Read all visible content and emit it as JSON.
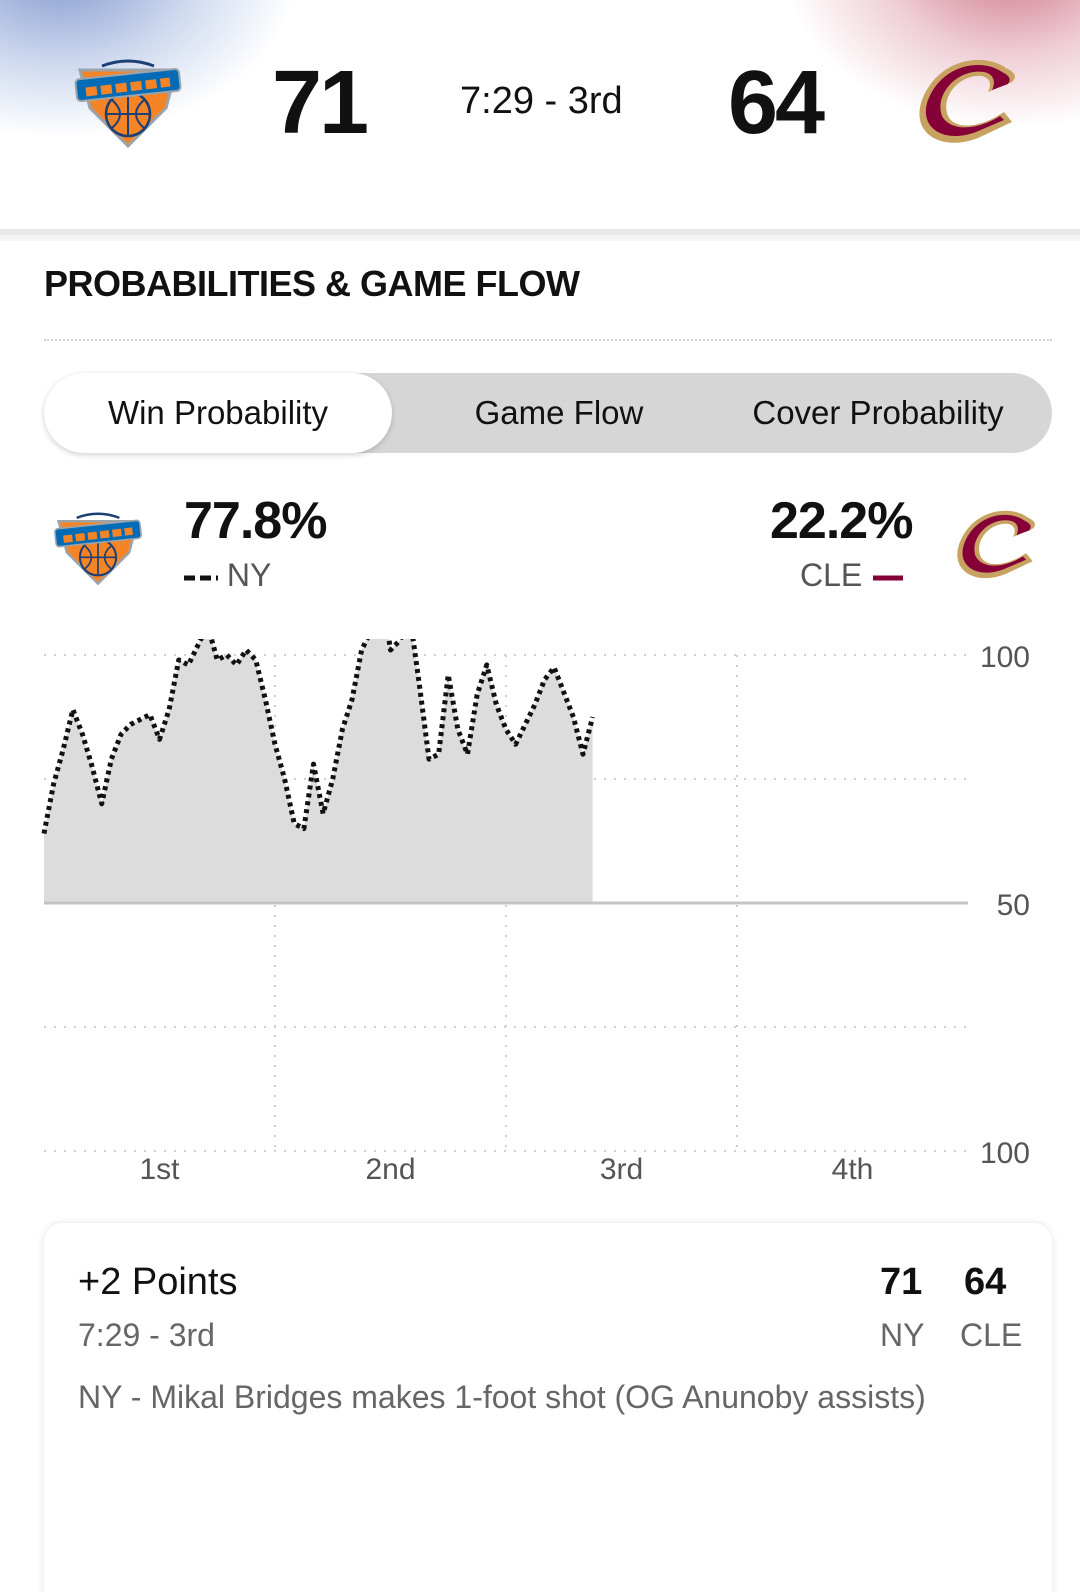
{
  "header": {
    "away_team": "NY",
    "home_team": "CLE",
    "away_score": "71",
    "home_score": "64",
    "game_clock": "7:29 - 3rd"
  },
  "section": {
    "title": "PROBABILITIES & GAME FLOW"
  },
  "tabs": [
    {
      "label": "Win Probability",
      "active": true
    },
    {
      "label": "Game Flow",
      "active": false
    },
    {
      "label": "Cover Probability",
      "active": false
    }
  ],
  "win_probability": {
    "away_pct": "77.8%",
    "home_pct": "22.2%",
    "away_label": "NY",
    "home_label": "CLE"
  },
  "colors": {
    "knicks_orange": "#F58426",
    "knicks_blue": "#006BB6",
    "cavs_wine": "#860038",
    "cavs_gold": "#C8A261",
    "fill_gray": "#dcdcdc"
  },
  "chart_data": {
    "type": "area",
    "y_tick_labels": [
      "100",
      "50",
      "100"
    ],
    "x_tick_labels": [
      "1st",
      "2nd",
      "3rd",
      "4th"
    ],
    "ylim": [
      -100,
      100
    ],
    "xlim": [
      0,
      48
    ],
    "baseline": 0,
    "grid": true,
    "series": [
      {
        "name": "NY",
        "x": [
          0,
          0.5,
          1.0,
          1.5,
          2.0,
          2.5,
          3.0,
          3.5,
          4.0,
          4.5,
          5.0,
          5.5,
          6.0,
          6.5,
          7.0,
          7.5,
          8.0,
          8.5,
          9.0,
          9.5,
          10.0,
          10.5,
          11.0,
          11.5,
          12.0,
          12.5,
          13.0,
          13.5,
          14.0,
          14.5,
          15.0,
          15.5,
          16.0,
          16.5,
          17.0,
          17.5,
          18.0,
          18.5,
          19.0,
          19.5,
          20.0,
          20.5,
          21.0,
          21.5,
          22.0,
          22.5,
          23.0,
          23.5,
          24.0,
          24.5,
          25.0,
          25.5,
          26.0,
          26.5,
          27.0,
          27.5,
          28.0,
          28.5
        ],
        "values": [
          28,
          48,
          62,
          78,
          68,
          55,
          40,
          58,
          68,
          72,
          74,
          76,
          66,
          78,
          98,
          96,
          104,
          112,
          98,
          100,
          96,
          102,
          98,
          82,
          64,
          50,
          32,
          30,
          56,
          36,
          50,
          70,
          82,
          102,
          110,
          128,
          102,
          106,
          116,
          88,
          58,
          60,
          92,
          70,
          60,
          84,
          96,
          80,
          70,
          64,
          72,
          80,
          90,
          95,
          85,
          75,
          60,
          75
        ]
      }
    ]
  },
  "play": {
    "title": "+2 Points",
    "time": "7:29 - 3rd",
    "description": "NY - Mikal Bridges makes 1-foot shot (OG Anunoby assists)",
    "away_score": "71",
    "home_score": "64",
    "away_label": "NY",
    "home_label": "CLE"
  }
}
